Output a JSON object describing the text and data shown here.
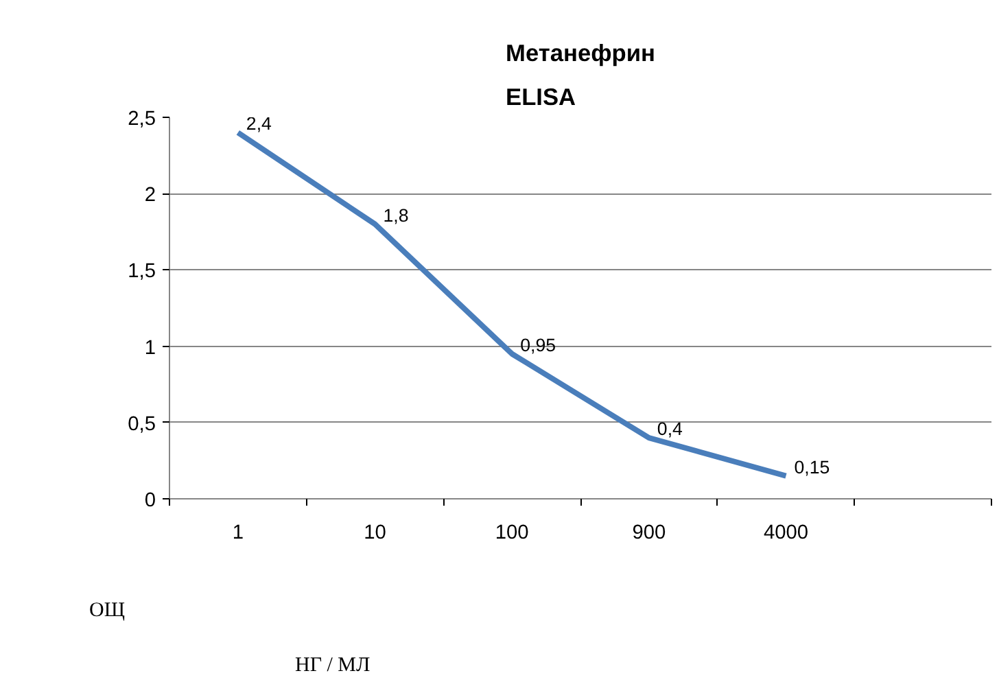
{
  "chart_data": {
    "type": "line",
    "title": "Метанефрин\nELISA",
    "annotations": [
      "ОЩ",
      "НГ / МЛ"
    ],
    "categories": [
      "1",
      "10",
      "100",
      "900",
      "4000",
      null
    ],
    "series": [
      {
        "color": "#4a7ebb",
        "values": [
          2.4,
          1.8,
          0.95,
          0.4,
          0.15,
          null
        ],
        "value_labels": [
          "2,4",
          "1,8",
          "0,95",
          "0,4",
          "0,15",
          null
        ]
      }
    ],
    "ylim": [
      0,
      2.5
    ],
    "yticks": [
      0,
      {
        "value": 0.5,
        "label": "0,5"
      },
      1,
      {
        "value": 1.5,
        "label": "1,5"
      },
      2,
      {
        "value": 2.5,
        "label": "2,5"
      }
    ],
    "grid": "y",
    "marker": "none",
    "line_style": "solid"
  }
}
